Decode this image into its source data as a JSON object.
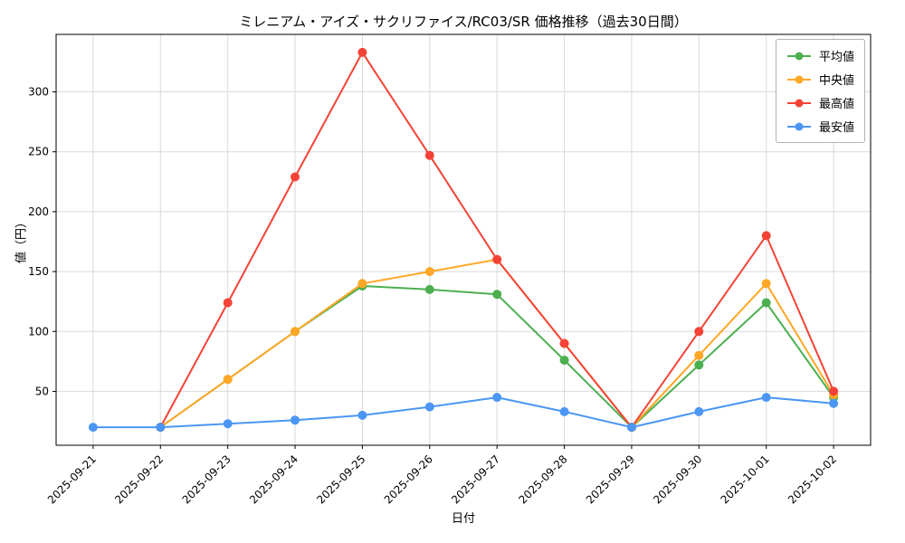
{
  "title": "ミレニアム・アイズ・サクリファイス/RC03/SR 価格推移（過去30日間）",
  "chart_data": {
    "type": "line",
    "title": "ミレニアム・アイズ・サクリファイス/RC03/SR 価格推移（過去30日間）",
    "xlabel": "日付",
    "ylabel": "値（円）",
    "categories": [
      "2025-09-21",
      "2025-09-22",
      "2025-09-23",
      "2025-09-24",
      "2025-09-25",
      "2025-09-26",
      "2025-09-27",
      "2025-09-28",
      "2025-09-29",
      "2025-09-30",
      "2025-10-01",
      "2025-10-02"
    ],
    "yticks": [
      50,
      100,
      150,
      200,
      250,
      300
    ],
    "ylim": [
      5,
      348
    ],
    "grid": true,
    "legend_position": "top-right",
    "series": [
      {
        "key": "average",
        "name": "平均値",
        "color": "#4caf50",
        "values": [
          null,
          20,
          60,
          100,
          138,
          135,
          131,
          76,
          20,
          72,
          124,
          45
        ]
      },
      {
        "key": "median",
        "name": "中央値",
        "color": "#ffa726",
        "values": [
          null,
          20,
          60,
          100,
          140,
          150,
          160,
          90,
          20,
          80,
          140,
          47
        ]
      },
      {
        "key": "max",
        "name": "最高値",
        "color": "#f44336",
        "values": [
          null,
          20,
          124,
          229,
          333,
          247,
          160,
          90,
          20,
          100,
          180,
          50
        ]
      },
      {
        "key": "min",
        "name": "最安値",
        "color": "#4b96f3",
        "values": [
          20,
          20,
          23,
          26,
          30,
          37,
          45,
          33,
          20,
          33,
          45,
          40
        ]
      }
    ]
  }
}
